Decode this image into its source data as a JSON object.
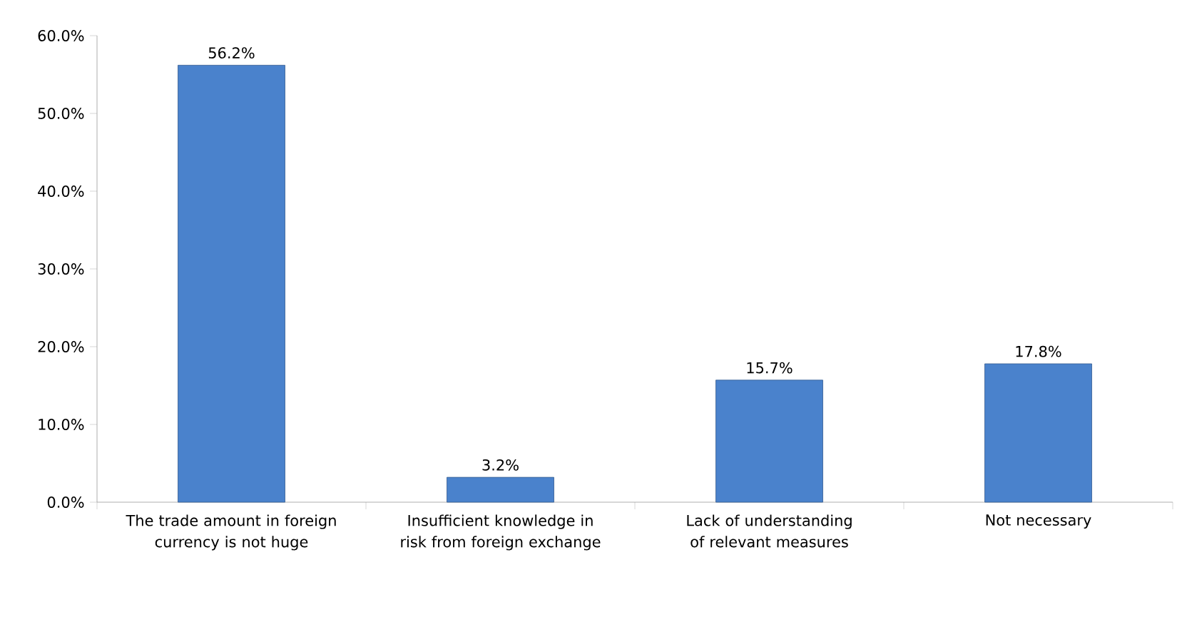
{
  "chart_data": {
    "type": "bar",
    "categories": [
      "The trade amount in foreign currency is not huge",
      "Insufficient knowledge in risk from foreign exchange",
      "Lack of understanding of relevant measures",
      "Not necessary"
    ],
    "values": [
      56.2,
      3.2,
      15.7,
      17.8
    ],
    "value_labels": [
      "56.2%",
      "3.2%",
      "15.7%",
      "17.8%"
    ],
    "color": "#4a82cc",
    "ylim": [
      0,
      60
    ],
    "yticks": [
      {
        "value": 0,
        "label": "0.0%"
      },
      {
        "value": 10,
        "label": "10.0%"
      },
      {
        "value": 20,
        "label": "20.0%"
      },
      {
        "value": 30,
        "label": "30.0%"
      },
      {
        "value": 40,
        "label": "40.0%"
      },
      {
        "value": 50,
        "label": "50.0%"
      },
      {
        "value": 60,
        "label": "60.0%"
      }
    ],
    "grid": false
  }
}
